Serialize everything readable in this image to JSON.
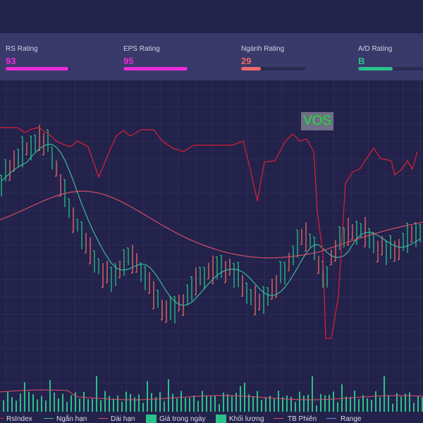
{
  "ratings": [
    {
      "label": "RS Rating",
      "value": "93",
      "color": "#ee2cd9",
      "fill_fraction": 0.97
    },
    {
      "label": "EPS Rating",
      "value": "95",
      "color": "#ee2cd9",
      "fill_fraction": 0.99
    },
    {
      "label": "Ngành Rating",
      "value": "29",
      "color": "#ee6a6a",
      "fill_fraction": 0.3
    },
    {
      "label": "A/D Rating",
      "value": "B",
      "color": "#2bc08a",
      "fill_fraction": 0.53
    }
  ],
  "ticker": "VOS",
  "legend": {
    "rsindex": "RsIndex",
    "short_term": "Ngắn hạn",
    "long_term": "Dài hạn",
    "intraday": "Giá trong ngày",
    "volume": "Khối lượng",
    "avg_session": "TB Phiên",
    "range": "Range"
  },
  "colors": {
    "background": "#22224a",
    "panel": "#39396a",
    "rsindex": "#d42035",
    "short_term": "#3cb89c",
    "long_term": "#e0506a",
    "candle_up": "#2bc08a",
    "candle_down": "#ee6a6a",
    "volume": "#2bc08a"
  }
}
